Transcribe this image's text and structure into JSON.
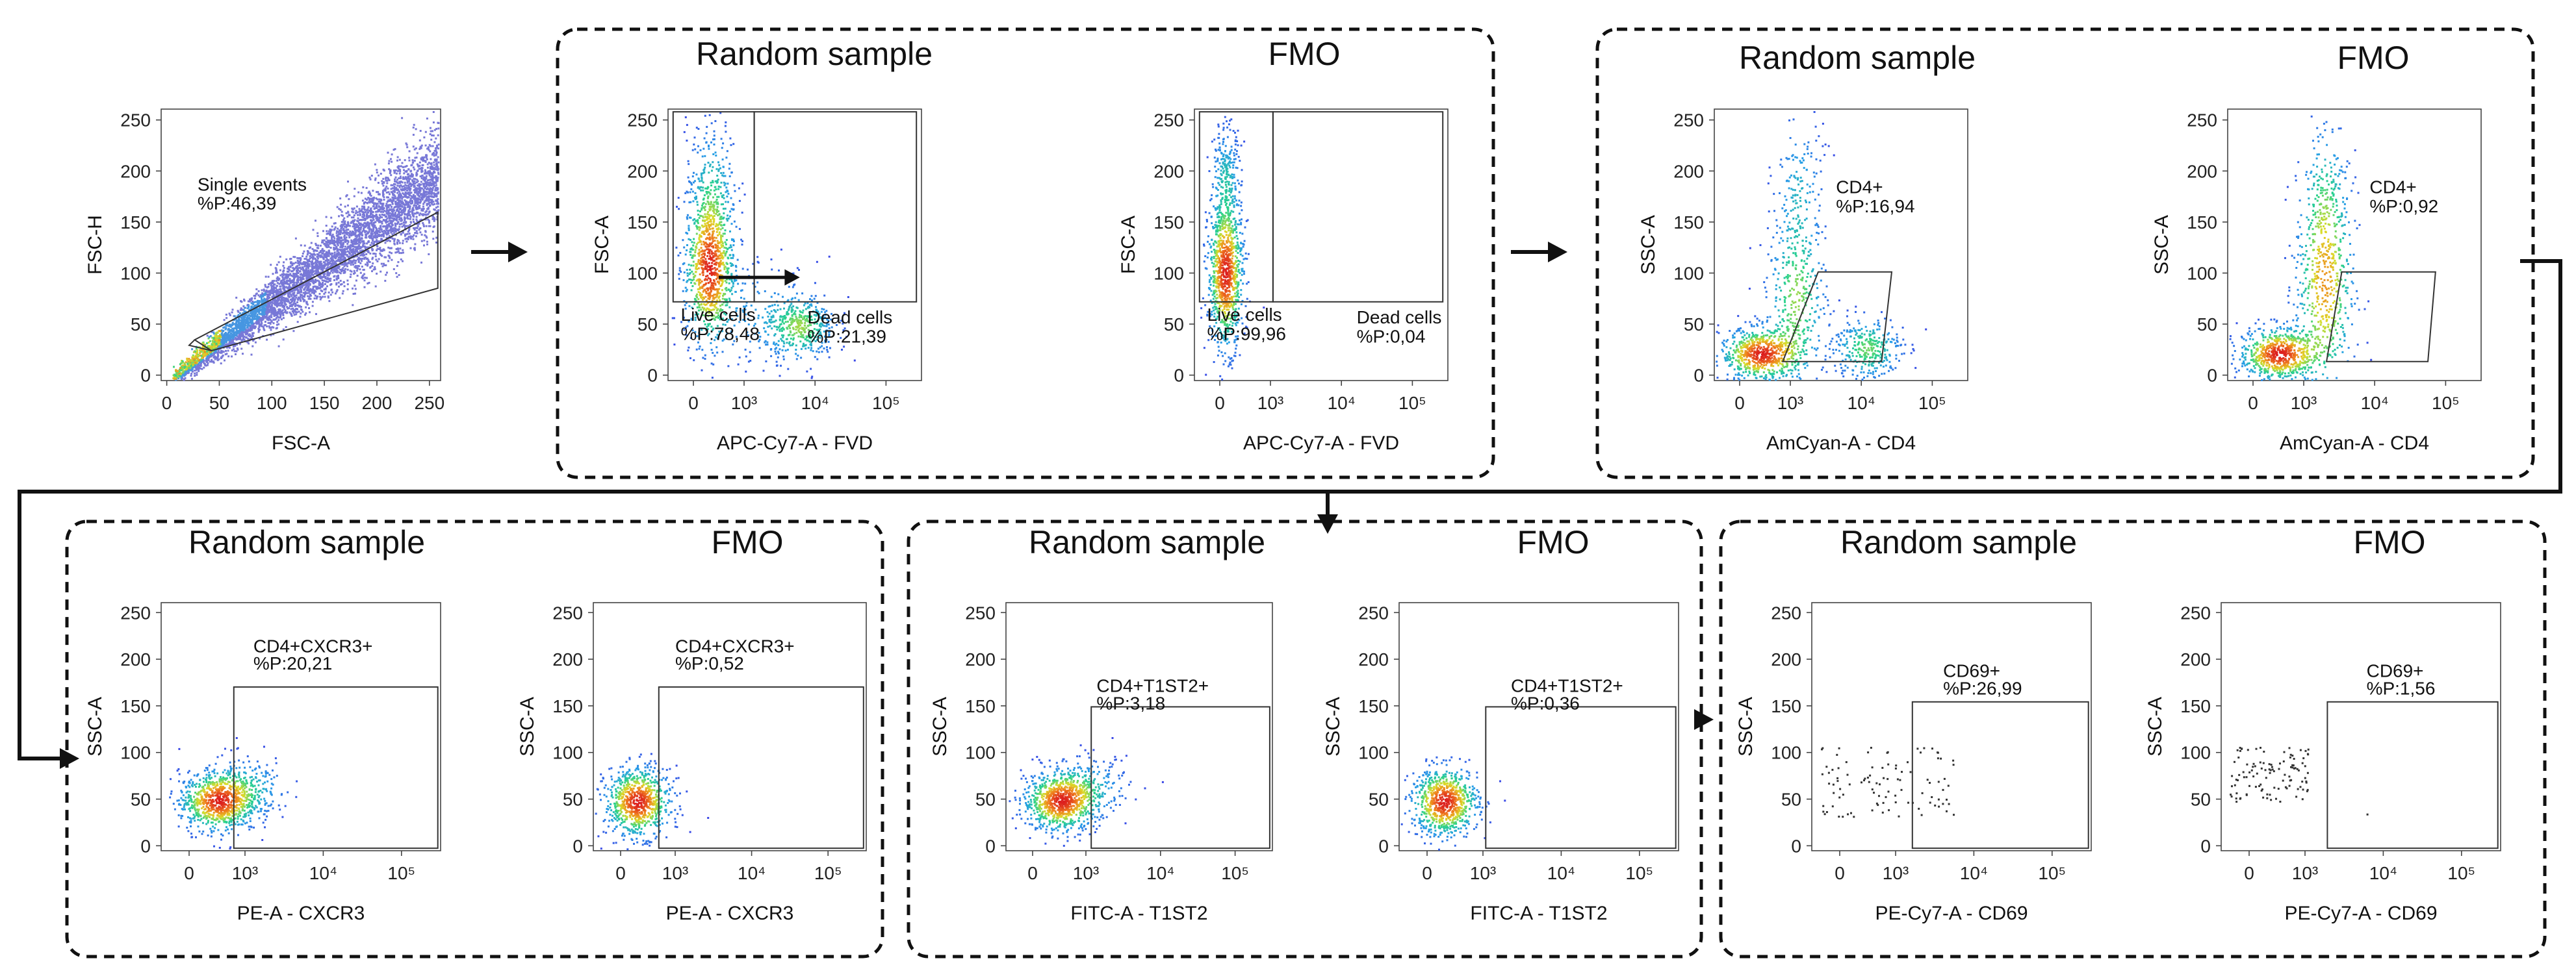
{
  "panels": [
    {
      "title_left": "Random sample",
      "title_right": "FMO"
    },
    {
      "title_left": "Random sample",
      "title_right": "FMO"
    },
    {
      "title_left": "Random sample",
      "title_right": "FMO"
    },
    {
      "title_left": "Random sample",
      "title_right": "FMO"
    },
    {
      "title_left": "Random sample",
      "title_right": "FMO"
    }
  ],
  "chart_data": [
    {
      "id": "singlets",
      "type": "scatter",
      "xlabel": "FSC-A",
      "ylabel": "FSC-H",
      "xticks": [
        "0",
        "50",
        "100",
        "150",
        "200",
        "250"
      ],
      "yticks": [
        "0",
        "50",
        "100",
        "150",
        "200",
        "250"
      ],
      "gates": [
        {
          "label": "Single events",
          "value": "%P:46,39"
        }
      ],
      "density": "diagonal"
    },
    {
      "id": "fvd_sample",
      "type": "scatter",
      "xlabel": "APC-Cy7-A - FVD",
      "ylabel": "FSC-A",
      "xticks": [
        "0",
        "10³",
        "10⁴",
        "10⁵"
      ],
      "yticks": [
        "0",
        "50",
        "100",
        "150",
        "200",
        "250"
      ],
      "gates": [
        {
          "label": "Live cells",
          "value": "%P:78,48"
        },
        {
          "label": "Dead cells",
          "value": "%P:21,39"
        }
      ],
      "density": "fvd_sample"
    },
    {
      "id": "fvd_fmo",
      "type": "scatter",
      "xlabel": "APC-Cy7-A - FVD",
      "ylabel": "FSC-A",
      "xticks": [
        "0",
        "10³",
        "10⁴",
        "10⁵"
      ],
      "yticks": [
        "0",
        "50",
        "100",
        "150",
        "200",
        "250"
      ],
      "gates": [
        {
          "label": "Live cells",
          "value": "%P:99,96"
        },
        {
          "label": "Dead cells",
          "value": "%P:0,04"
        }
      ],
      "density": "fvd_fmo"
    },
    {
      "id": "cd4_sample",
      "type": "scatter",
      "xlabel": "AmCyan-A  - CD4",
      "ylabel": "SSC-A",
      "xticks": [
        "0",
        "10³",
        "10⁴",
        "10⁵"
      ],
      "yticks": [
        "0",
        "50",
        "100",
        "150",
        "200",
        "250"
      ],
      "gates": [
        {
          "label": "CD4+",
          "value": "%P:16,94"
        }
      ],
      "density": "cd4_sample"
    },
    {
      "id": "cd4_fmo",
      "type": "scatter",
      "xlabel": "AmCyan-A  - CD4",
      "ylabel": "SSC-A",
      "xticks": [
        "0",
        "10³",
        "10⁴",
        "10⁵"
      ],
      "yticks": [
        "0",
        "50",
        "100",
        "150",
        "200",
        "250"
      ],
      "gates": [
        {
          "label": "CD4+",
          "value": "%P:0,92"
        }
      ],
      "density": "cd4_fmo"
    },
    {
      "id": "cxcr3_sample",
      "type": "scatter",
      "xlabel": "PE-A  - CXCR3",
      "ylabel": "SSC-A",
      "xticks": [
        "0",
        "10³",
        "10⁴",
        "10⁵"
      ],
      "yticks": [
        "0",
        "50",
        "100",
        "150",
        "200",
        "250"
      ],
      "gates": [
        {
          "label": "CD4+CXCR3+",
          "value": "%P:20,21"
        }
      ],
      "density": "low_blob"
    },
    {
      "id": "cxcr3_fmo",
      "type": "scatter",
      "xlabel": "PE-A  - CXCR3",
      "ylabel": "SSC-A",
      "xticks": [
        "0",
        "10³",
        "10⁴",
        "10⁵"
      ],
      "yticks": [
        "0",
        "50",
        "100",
        "150",
        "200",
        "250"
      ],
      "gates": [
        {
          "label": "CD4+CXCR3+",
          "value": "%P:0,52"
        }
      ],
      "density": "low_blob_fmo"
    },
    {
      "id": "t1st2_sample",
      "type": "scatter",
      "xlabel": "FITC-A  - T1ST2",
      "ylabel": "SSC-A",
      "xticks": [
        "0",
        "10³",
        "10⁴",
        "10⁵"
      ],
      "yticks": [
        "0",
        "50",
        "100",
        "150",
        "200",
        "250"
      ],
      "gates": [
        {
          "label": "CD4+T1ST2+",
          "value": "%P:3,18"
        }
      ],
      "density": "low_blob"
    },
    {
      "id": "t1st2_fmo",
      "type": "scatter",
      "xlabel": "FITC-A  - T1ST2",
      "ylabel": "SSC-A",
      "xticks": [
        "0",
        "10³",
        "10⁴",
        "10⁵"
      ],
      "yticks": [
        "0",
        "50",
        "100",
        "150",
        "200",
        "250"
      ],
      "gates": [
        {
          "label": "CD4+T1ST2+",
          "value": "%P:0,36"
        }
      ],
      "density": "low_blob_fmo"
    },
    {
      "id": "cd69_sample",
      "type": "scatter",
      "xlabel": "PE-Cy7-A  - CD69",
      "ylabel": "SSC-A",
      "xticks": [
        "0",
        "10³",
        "10⁴",
        "10⁵"
      ],
      "yticks": [
        "0",
        "50",
        "100",
        "150",
        "200",
        "250"
      ],
      "gates": [
        {
          "label": "CD69+",
          "value": "%P:26,99"
        }
      ],
      "density": "sparse"
    },
    {
      "id": "cd69_fmo",
      "type": "scatter",
      "xlabel": "PE-Cy7-A  - CD69",
      "ylabel": "SSC-A",
      "xticks": [
        "0",
        "10³",
        "10⁴",
        "10⁵"
      ],
      "yticks": [
        "0",
        "50",
        "100",
        "150",
        "200",
        "250"
      ],
      "gates": [
        {
          "label": "CD69+",
          "value": "%P:1,56"
        }
      ],
      "density": "sparse_fmo"
    }
  ]
}
